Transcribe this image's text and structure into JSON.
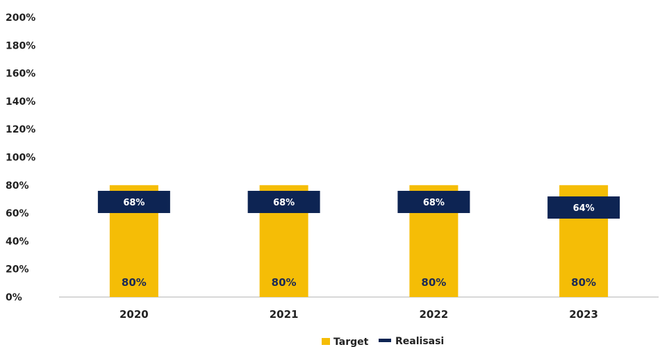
{
  "chart_data": {
    "type": "bar",
    "title": "",
    "xlabel": "",
    "ylabel": "",
    "categories": [
      "2020",
      "2021",
      "2022",
      "2023"
    ],
    "ylim": [
      0,
      200
    ],
    "y_ticks": [
      0,
      20,
      40,
      60,
      80,
      100,
      120,
      140,
      160,
      180,
      200
    ],
    "y_tick_suffix": "%",
    "grid": false,
    "legend_position": "bottom-center",
    "series": [
      {
        "name": "Target",
        "style": "bar",
        "color": "#f5bd06",
        "values": [
          80,
          80,
          80,
          80
        ],
        "labels": [
          "80%",
          "80%",
          "80%",
          "80%"
        ]
      },
      {
        "name": "Realisasi",
        "style": "marker",
        "color": "#0d2453",
        "values": [
          68,
          68,
          68,
          64
        ],
        "labels": [
          "68%",
          "68%",
          "68%",
          "64%"
        ]
      }
    ]
  }
}
